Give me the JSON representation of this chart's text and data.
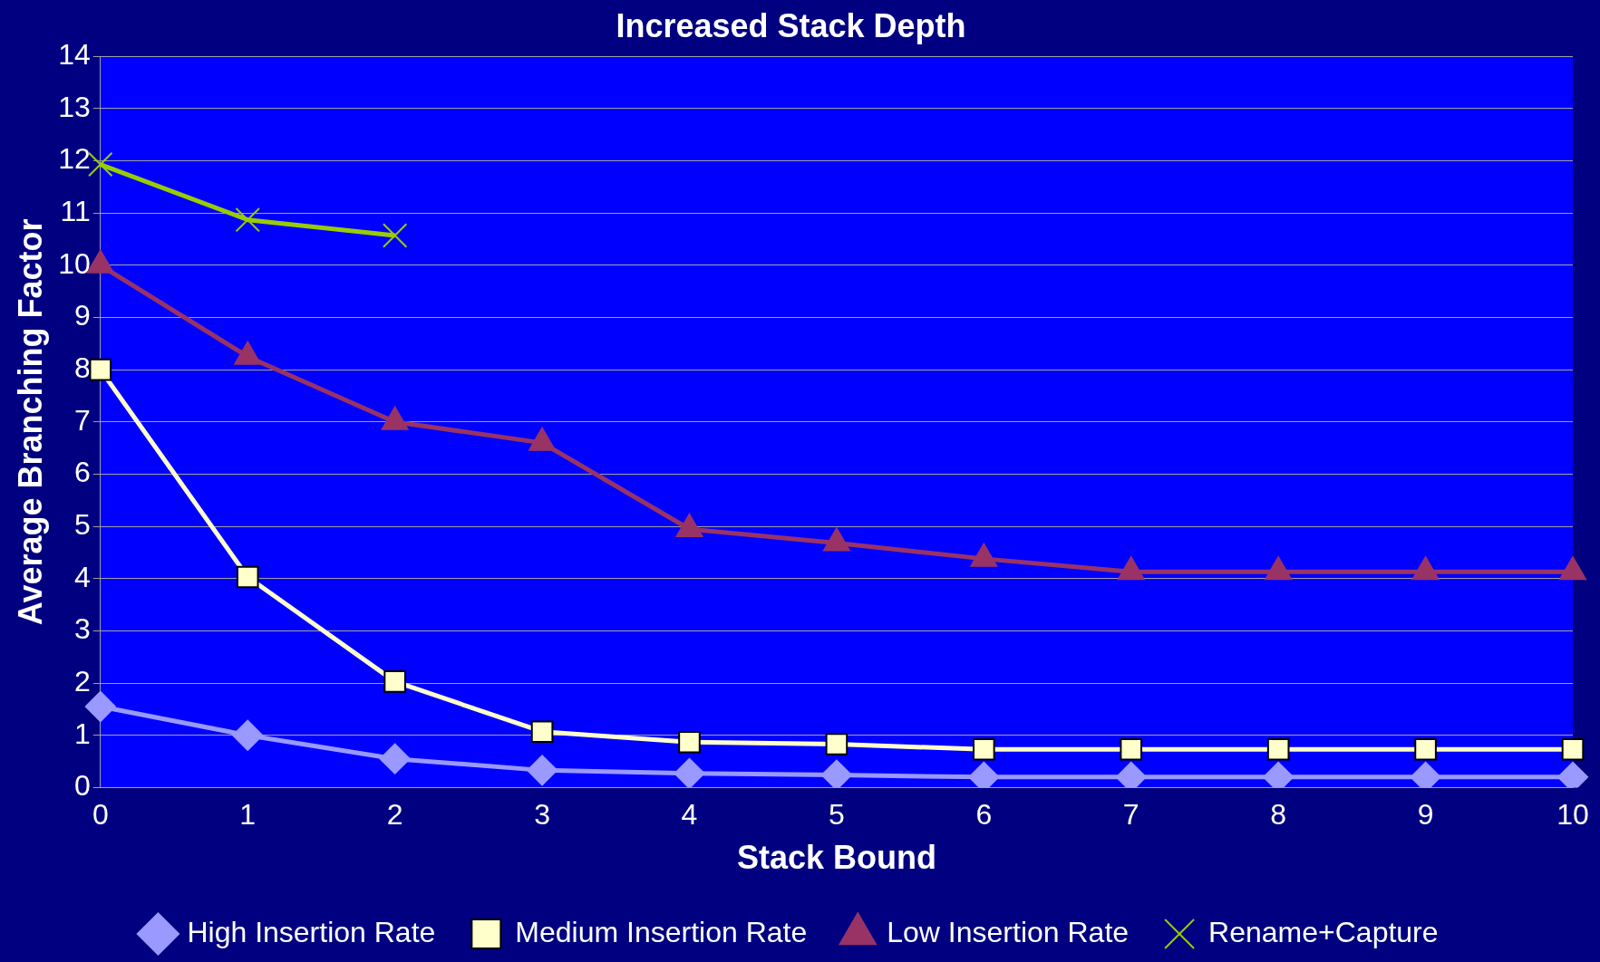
{
  "chart_data": {
    "type": "line",
    "title": "Increased Stack Depth",
    "xlabel": "Stack Bound",
    "ylabel": "Average Branching Factor",
    "categories": [
      "0",
      "1",
      "2",
      "3",
      "4",
      "5",
      "6",
      "7",
      "8",
      "9",
      "10"
    ],
    "ylim": [
      0,
      14
    ],
    "yticks": [
      0,
      1,
      2,
      3,
      4,
      5,
      6,
      7,
      8,
      9,
      10,
      11,
      12,
      13,
      14
    ],
    "grid": "y",
    "legend": "bottom",
    "series": [
      {
        "name": "High Insertion Rate",
        "color": "#9999ff",
        "marker": "diamond",
        "values": [
          1.55,
          1.0,
          0.55,
          0.33,
          0.27,
          0.24,
          0.2,
          0.2,
          0.2,
          0.2,
          0.2
        ]
      },
      {
        "name": "Medium Insertion Rate",
        "color": "#ffffcc",
        "marker": "square",
        "values": [
          8,
          4.03,
          2.03,
          1.07,
          0.87,
          0.83,
          0.73,
          0.73,
          0.73,
          0.73,
          0.73
        ]
      },
      {
        "name": "Low Insertion Rate",
        "color": "#993366",
        "marker": "triangle",
        "values": [
          10,
          8.25,
          7.0,
          6.6,
          4.95,
          4.68,
          4.38,
          4.13,
          4.13,
          4.13,
          4.13
        ]
      },
      {
        "name": "Rename+Capture",
        "color": "#99cc00",
        "marker": "cross",
        "values": [
          11.93,
          10.87,
          10.57,
          null,
          null,
          null,
          null,
          null,
          null,
          null,
          null
        ]
      }
    ]
  }
}
